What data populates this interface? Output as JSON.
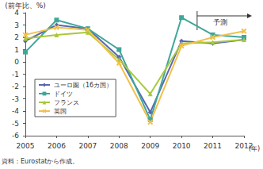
{
  "chart_data": {
    "type": "line",
    "x_label": "(年)",
    "y_label": "(前年比、%)",
    "caption": "資料：Eurostatから作成。",
    "annotations": [
      {
        "text": "予測",
        "from": "2011"
      }
    ],
    "categories": [
      "2005",
      "2006",
      "2007",
      "2008",
      "2009",
      "2010",
      "2011",
      "2012"
    ],
    "series": [
      {
        "name": "ユーロ圏（16カ国）",
        "color": "#5a67ae",
        "marker": "diamond",
        "values": [
          1.7,
          3.0,
          2.7,
          0.4,
          -4.1,
          1.7,
          1.5,
          1.8
        ]
      },
      {
        "name": "ドイツ",
        "color": "#3fa79a",
        "marker": "square",
        "values": [
          0.8,
          3.4,
          2.7,
          1.0,
          -4.7,
          3.6,
          2.2,
          2.0
        ]
      },
      {
        "name": "フランス",
        "color": "#a9c83b",
        "marker": "triangle",
        "values": [
          1.9,
          2.2,
          2.4,
          0.2,
          -2.6,
          1.5,
          1.6,
          1.8
        ]
      },
      {
        "name": "英国",
        "color": "#f2c14a",
        "marker": "x",
        "values": [
          2.2,
          2.8,
          2.6,
          -0.1,
          -4.9,
          1.3,
          2.0,
          2.5
        ]
      }
    ],
    "ylim": [
      -6,
      4
    ],
    "yticks": [
      -6,
      -5,
      -4,
      -3,
      -2,
      -1,
      0,
      1,
      2,
      3,
      4
    ],
    "grid": false,
    "legend": "lower left"
  }
}
